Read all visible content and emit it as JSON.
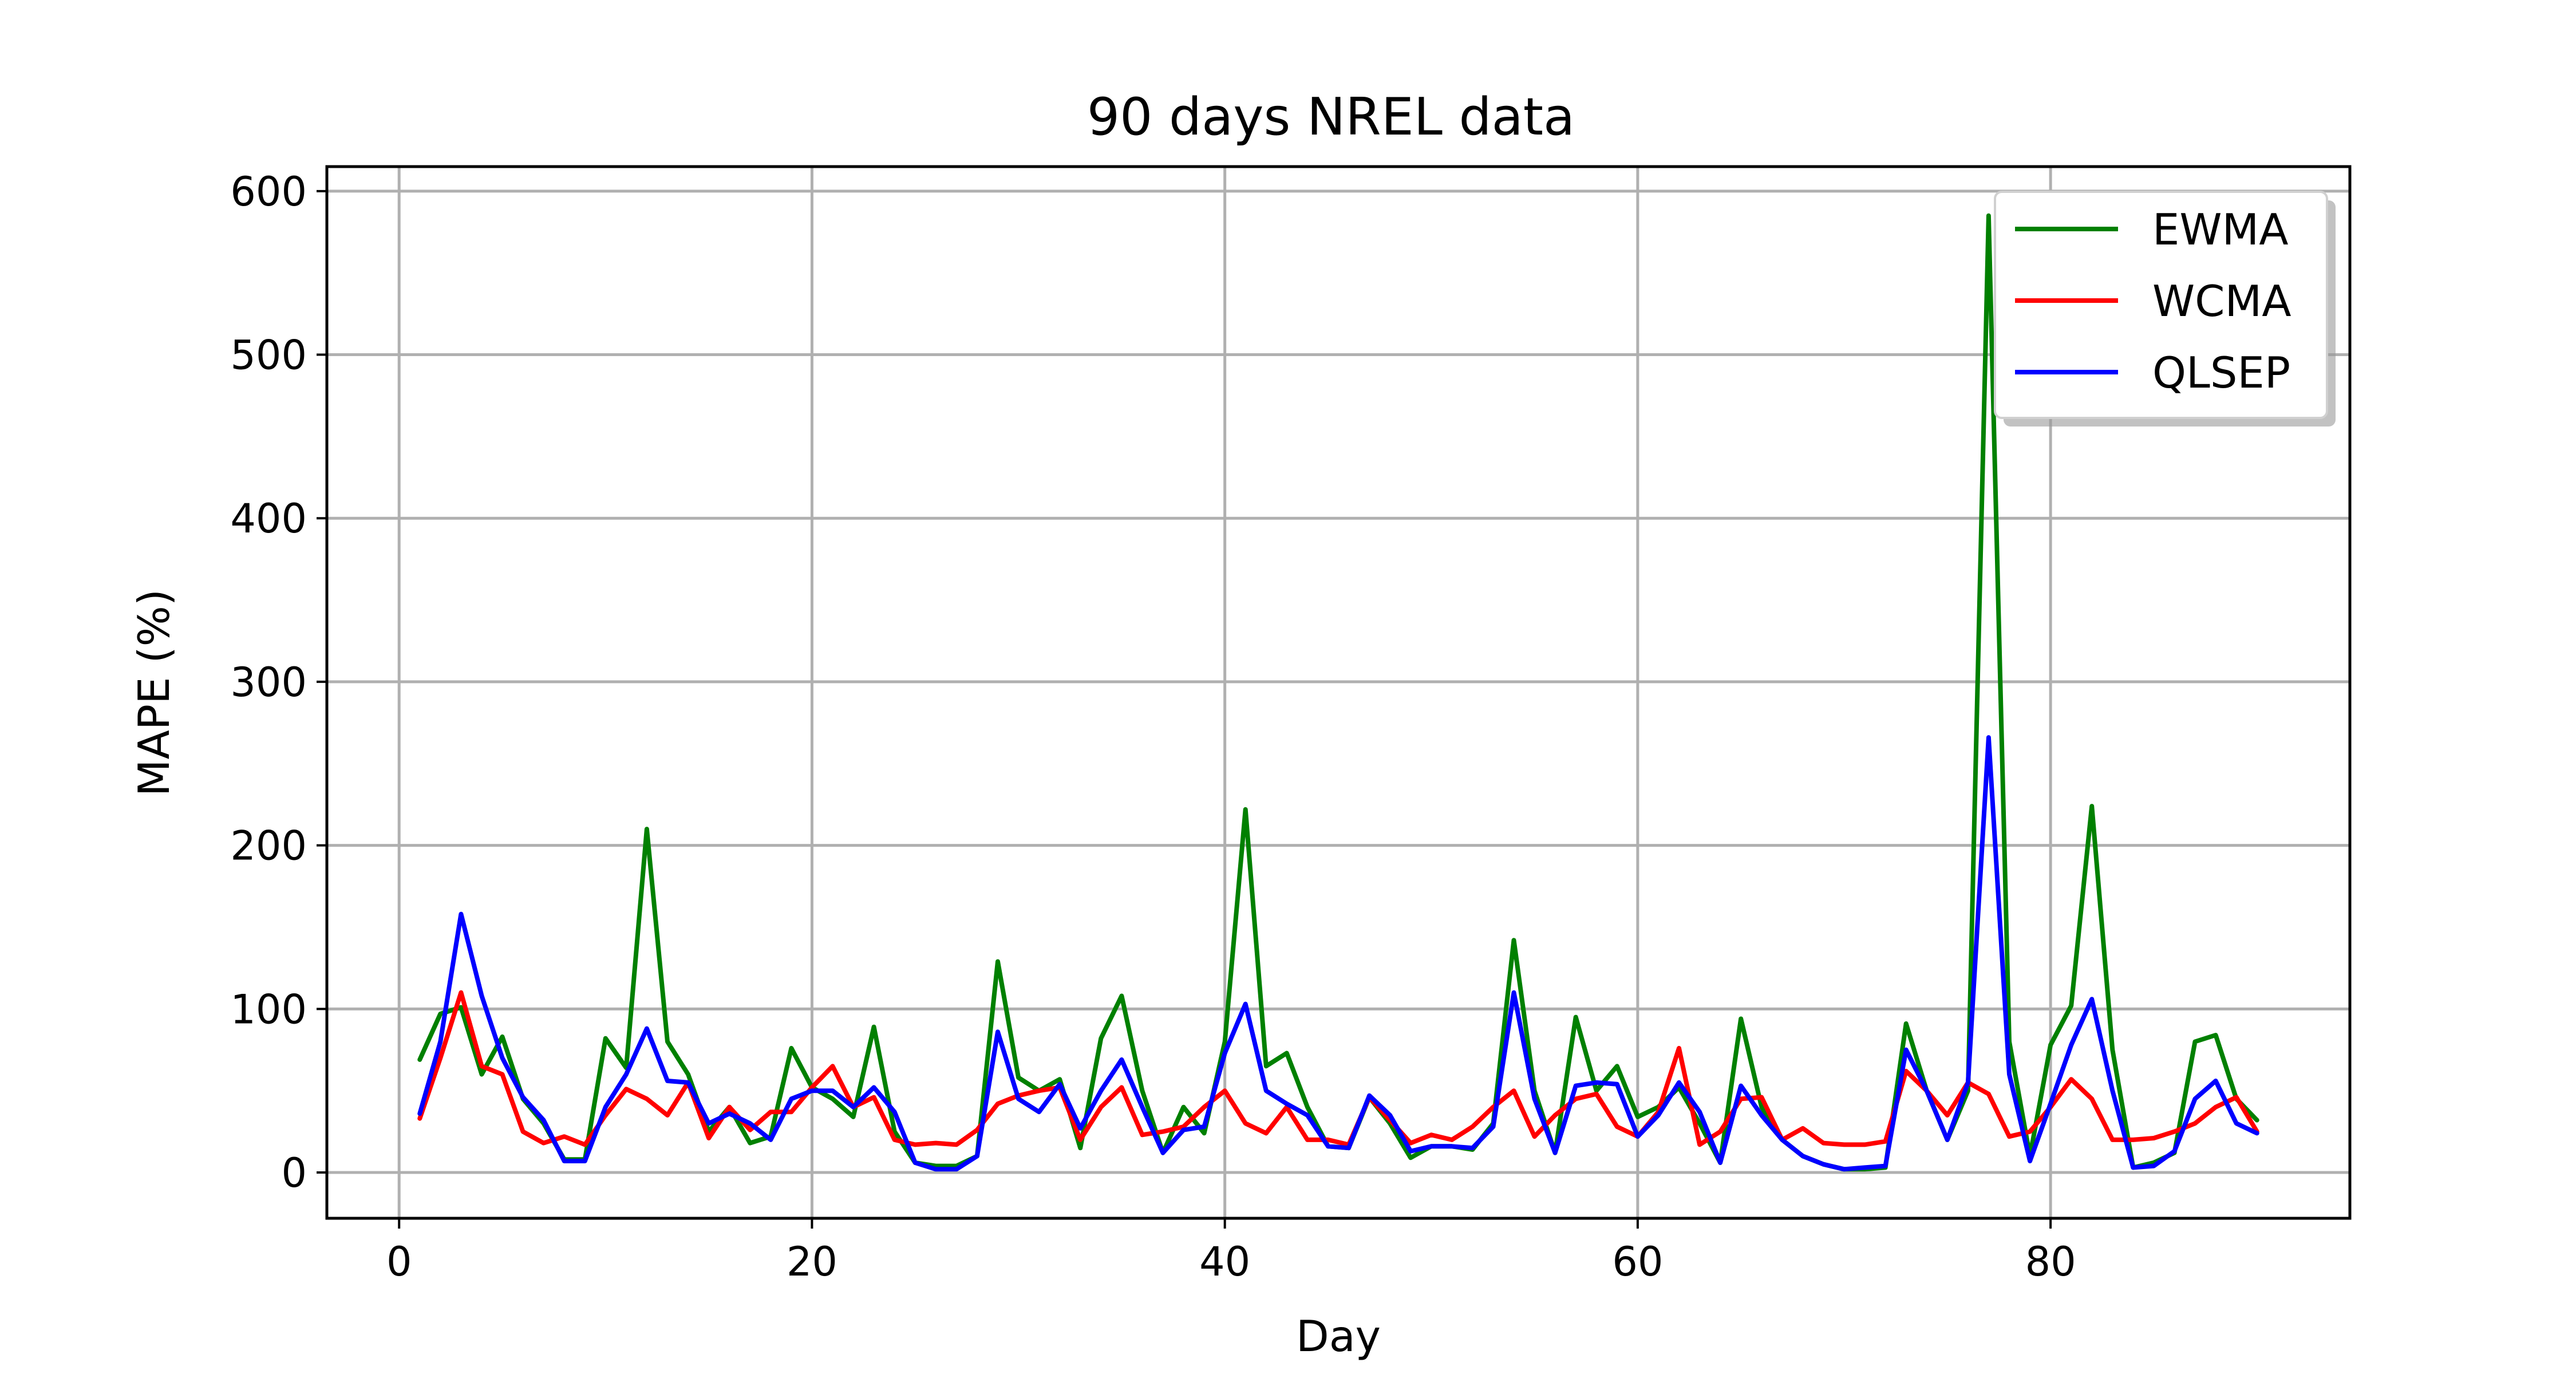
{
  "chart_data": {
    "type": "line",
    "title": "90 days NREL data",
    "xlabel": "Day",
    "ylabel": "MAPE (%)",
    "xlim": [
      -3.5,
      94.5
    ],
    "ylim": [
      -28,
      615
    ],
    "xticks": [
      0,
      20,
      40,
      60,
      80
    ],
    "yticks": [
      0,
      100,
      200,
      300,
      400,
      500,
      600
    ],
    "grid": true,
    "legend_position": "top-right",
    "x": [
      1,
      2,
      3,
      4,
      5,
      6,
      7,
      8,
      9,
      10,
      11,
      12,
      13,
      14,
      15,
      16,
      17,
      18,
      19,
      20,
      21,
      22,
      23,
      24,
      25,
      26,
      27,
      28,
      29,
      30,
      31,
      32,
      33,
      34,
      35,
      36,
      37,
      38,
      39,
      40,
      41,
      42,
      43,
      44,
      45,
      46,
      47,
      48,
      49,
      50,
      51,
      52,
      53,
      54,
      55,
      56,
      57,
      58,
      59,
      60,
      61,
      62,
      63,
      64,
      65,
      66,
      67,
      68,
      69,
      70,
      71,
      72,
      73,
      74,
      75,
      76,
      77,
      78,
      79,
      80,
      81,
      82,
      83,
      84,
      85,
      86,
      87,
      88,
      89,
      90
    ],
    "series": [
      {
        "name": "EWMA",
        "color": "#008000",
        "values": [
          69,
          97,
          101,
          60,
          83,
          45,
          30,
          8,
          8,
          82,
          64,
          210,
          80,
          60,
          25,
          40,
          18,
          22,
          76,
          52,
          45,
          34,
          89,
          25,
          6,
          4,
          4,
          10,
          129,
          58,
          50,
          57,
          15,
          82,
          108,
          50,
          12,
          40,
          24,
          80,
          222,
          65,
          73,
          40,
          16,
          15,
          46,
          30,
          9,
          16,
          16,
          14,
          30,
          142,
          50,
          12,
          95,
          50,
          65,
          34,
          40,
          52,
          30,
          6,
          94,
          40,
          20,
          10,
          5,
          2,
          2,
          3,
          91,
          50,
          20,
          50,
          585,
          80,
          10,
          78,
          102,
          224,
          75,
          3,
          6,
          12,
          80,
          84,
          45,
          32
        ]
      },
      {
        "name": "WCMA",
        "color": "#ff0000",
        "values": [
          33,
          70,
          110,
          65,
          60,
          25,
          18,
          22,
          17,
          35,
          51,
          45,
          35,
          55,
          21,
          40,
          26,
          37,
          37,
          52,
          65,
          40,
          46,
          20,
          17,
          18,
          17,
          26,
          42,
          47,
          50,
          52,
          20,
          40,
          52,
          23,
          25,
          28,
          40,
          50,
          30,
          24,
          40,
          20,
          20,
          17,
          46,
          32,
          18,
          23,
          20,
          28,
          40,
          50,
          22,
          35,
          45,
          48,
          28,
          22,
          37,
          76,
          17,
          25,
          45,
          46,
          20,
          27,
          18,
          17,
          17,
          19,
          62,
          50,
          35,
          55,
          48,
          22,
          25,
          40,
          57,
          45,
          20,
          20,
          21,
          25,
          30,
          40,
          46,
          25
        ]
      },
      {
        "name": "QLSEP",
        "color": "#0000ff",
        "values": [
          36,
          80,
          158,
          108,
          70,
          46,
          32,
          7,
          7,
          40,
          60,
          88,
          56,
          55,
          30,
          36,
          30,
          20,
          45,
          50,
          50,
          40,
          52,
          37,
          6,
          2,
          2,
          10,
          86,
          45,
          37,
          54,
          27,
          50,
          69,
          40,
          12,
          26,
          28,
          73,
          103,
          50,
          42,
          35,
          16,
          15,
          47,
          35,
          13,
          16,
          16,
          15,
          28,
          110,
          45,
          12,
          53,
          55,
          54,
          22,
          35,
          55,
          37,
          6,
          53,
          35,
          20,
          10,
          5,
          2,
          3,
          4,
          75,
          50,
          20,
          55,
          266,
          60,
          7,
          42,
          78,
          106,
          50,
          3,
          4,
          13,
          45,
          56,
          30,
          24
        ]
      }
    ]
  }
}
